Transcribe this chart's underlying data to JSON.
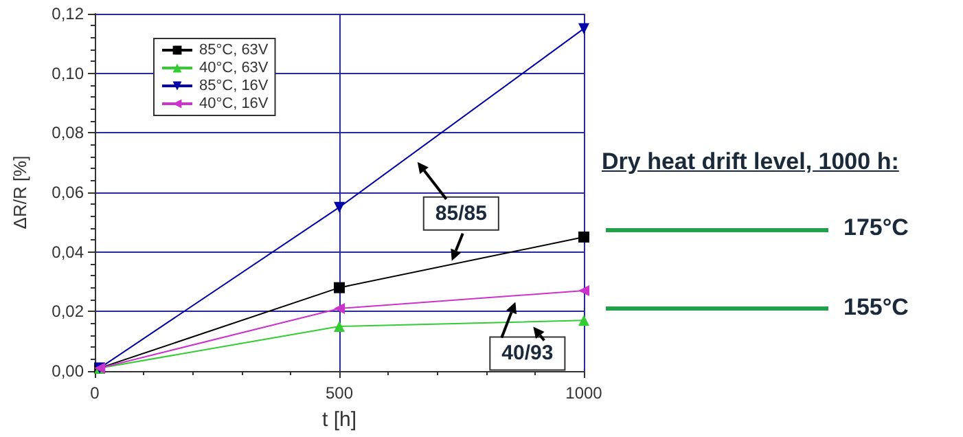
{
  "chart_data": {
    "type": "line",
    "xlabel": "t [h]",
    "ylabel": "ΔR/R [%]",
    "x": [
      10,
      500,
      1000
    ],
    "series": [
      {
        "name": "85°C, 63V",
        "color": "#000000",
        "marker": "square",
        "values": [
          0.001,
          0.028,
          0.045
        ]
      },
      {
        "name": "40°C, 63V",
        "color": "#33cc33",
        "marker": "triangle",
        "values": [
          0.001,
          0.015,
          0.017
        ]
      },
      {
        "name": "85°C, 16V",
        "color": "#0000aa",
        "marker": "triangle-down",
        "values": [
          0.001,
          0.055,
          0.115
        ]
      },
      {
        "name": "40°C, 16V",
        "color": "#cc33cc",
        "marker": "triangle-left",
        "values": [
          0.001,
          0.021,
          0.027
        ]
      }
    ],
    "xlim": [
      0,
      1000
    ],
    "xticks": [
      0,
      500,
      1000
    ],
    "ylim": [
      0,
      0.12
    ],
    "yticks": [
      {
        "value": 0,
        "label": "0,00"
      },
      {
        "value": 0.02,
        "label": "0,02"
      },
      {
        "value": 0.04,
        "label": "0,04"
      },
      {
        "value": 0.06,
        "label": "0,06"
      },
      {
        "value": 0.08,
        "label": "0,08"
      },
      {
        "value": 0.1,
        "label": "0,10"
      },
      {
        "value": 0.12,
        "label": "0,12"
      }
    ],
    "grid": true,
    "legend": "top left",
    "line_style": "solid",
    "annotations": [
      {
        "text": "85/85",
        "x": 730,
        "y": 0.037
      },
      {
        "text": "40/93",
        "x": 860,
        "y": 0.0232
      },
      "Dry heat drift level, 1000 h:",
      "175°C",
      "155°C"
    ]
  }
}
